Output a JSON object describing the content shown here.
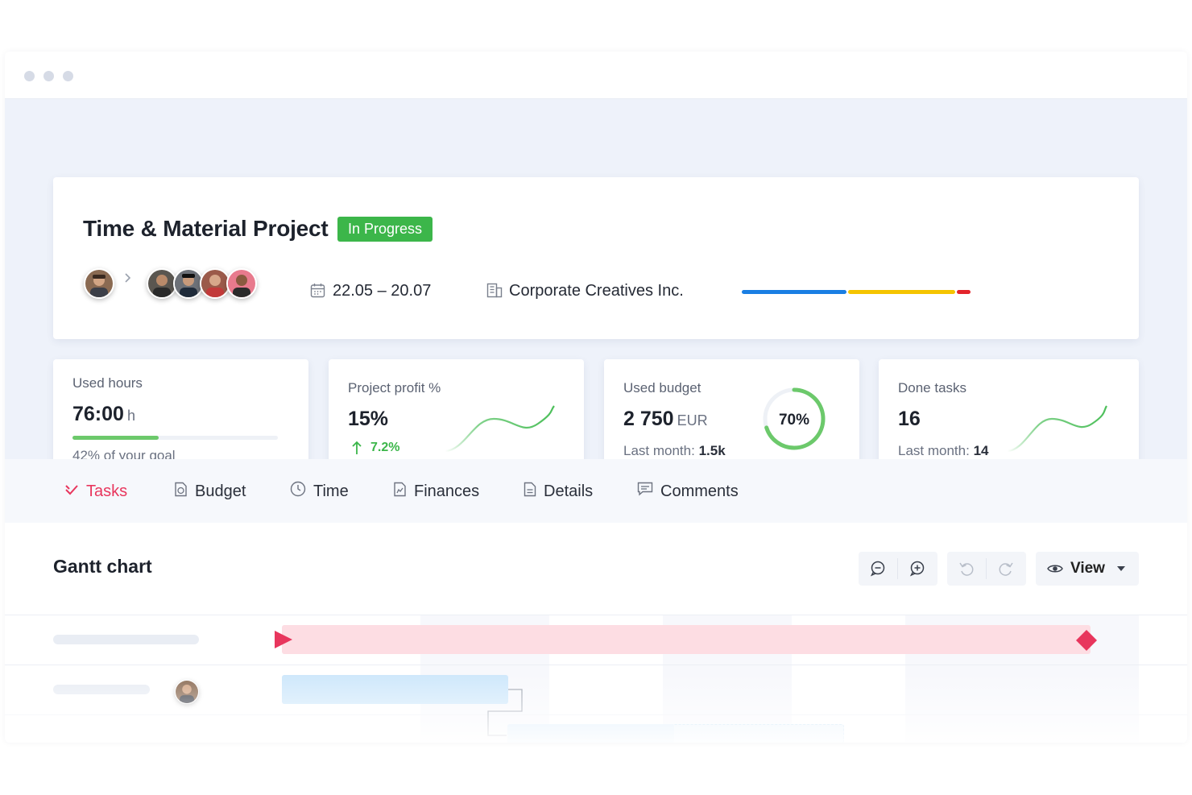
{
  "project": {
    "title": "Time & Material Project",
    "status": "In Progress",
    "status_color": "#3cb64a",
    "dates": "22.05 – 20.07",
    "client": "Corporate Creatives Inc.",
    "progress_colors": [
      "#1a7ee3",
      "#f5c400",
      "#e3242b"
    ]
  },
  "stats": {
    "hours": {
      "label": "Used hours",
      "value": "76:00",
      "unit": "h",
      "goal_text": "42% of your goal",
      "goal_fraction": 0.42
    },
    "profit": {
      "label": "Project profit %",
      "value": "15%",
      "change": "7.2%"
    },
    "budget": {
      "label": "Used budget",
      "value": "2 750",
      "unit": "EUR",
      "last_month_label": "Last month:",
      "last_month_value": "1.5k",
      "percent_text": "70%",
      "percent": 70
    },
    "tasks": {
      "label": "Done tasks",
      "value": "16",
      "last_month_label": "Last month:",
      "last_month_value": "14"
    }
  },
  "tabs": [
    {
      "label": "Tasks",
      "icon": "check-icon",
      "active": true
    },
    {
      "label": "Budget",
      "icon": "budget-icon"
    },
    {
      "label": "Time",
      "icon": "clock-icon"
    },
    {
      "label": "Finances",
      "icon": "finances-icon"
    },
    {
      "label": "Details",
      "icon": "document-icon"
    },
    {
      "label": "Comments",
      "icon": "comment-icon"
    }
  ],
  "gantt": {
    "title": "Gantt chart",
    "view_label": "View"
  },
  "colors": {
    "accent": "#e8365d",
    "green": "#4cbf5a"
  }
}
